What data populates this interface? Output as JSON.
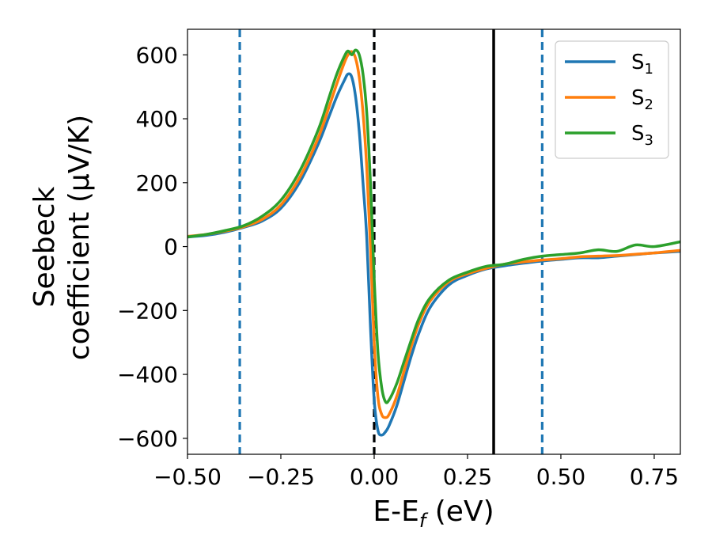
{
  "chart_data": {
    "type": "line",
    "xlabel": "E-E",
    "xlabel_sub": "f",
    "xlabel_unit": " (eV)",
    "ylabel_line1": "Seebeck",
    "ylabel_line2": "coefficient  (μV/K)",
    "xlim": [
      -0.5,
      0.82
    ],
    "ylim": [
      -650,
      680
    ],
    "xticks": [
      -0.5,
      -0.25,
      0.0,
      0.25,
      0.5,
      0.75
    ],
    "xtick_labels": [
      "−0.50",
      "−0.25",
      "0.00",
      "0.25",
      "0.50",
      "0.75"
    ],
    "yticks": [
      -600,
      -400,
      -200,
      0,
      200,
      400,
      600
    ],
    "ytick_labels": [
      "−600",
      "−400",
      "−200",
      "0",
      "200",
      "400",
      "600"
    ],
    "grid": false,
    "legend_position": "top-right",
    "vlines": [
      {
        "x": -0.36,
        "style": "dashed",
        "color": "#1f77b4"
      },
      {
        "x": 0.0,
        "style": "dashed",
        "color": "#1f77b4"
      },
      {
        "x": 0.0,
        "style": "dashed",
        "color": "#000000"
      },
      {
        "x": 0.32,
        "style": "solid",
        "color": "#000000"
      },
      {
        "x": 0.45,
        "style": "dashed",
        "color": "#1f77b4"
      }
    ],
    "series": [
      {
        "name": "S",
        "sub": "1",
        "color": "#1f77b4",
        "x": [
          -0.5,
          -0.45,
          -0.4,
          -0.35,
          -0.3,
          -0.25,
          -0.2,
          -0.15,
          -0.12,
          -0.1,
          -0.08,
          -0.07,
          -0.06,
          -0.05,
          -0.04,
          -0.03,
          -0.02,
          -0.01,
          0.0,
          0.01,
          0.02,
          0.03,
          0.04,
          0.06,
          0.08,
          0.1,
          0.12,
          0.15,
          0.2,
          0.25,
          0.3,
          0.35,
          0.4,
          0.45,
          0.5,
          0.55,
          0.6,
          0.65,
          0.7,
          0.75,
          0.82
        ],
        "y": [
          30,
          35,
          45,
          60,
          80,
          120,
          200,
          320,
          410,
          470,
          520,
          540,
          530,
          470,
          360,
          200,
          30,
          -250,
          -480,
          -575,
          -590,
          -580,
          -560,
          -500,
          -420,
          -340,
          -270,
          -190,
          -120,
          -90,
          -70,
          -60,
          -52,
          -45,
          -40,
          -35,
          -35,
          -30,
          -25,
          -20,
          -15
        ]
      },
      {
        "name": "S",
        "sub": "2",
        "color": "#ff7f0e",
        "x": [
          -0.5,
          -0.45,
          -0.4,
          -0.35,
          -0.3,
          -0.25,
          -0.2,
          -0.15,
          -0.12,
          -0.1,
          -0.08,
          -0.07,
          -0.06,
          -0.05,
          -0.04,
          -0.03,
          -0.02,
          -0.01,
          0.0,
          0.01,
          0.02,
          0.03,
          0.04,
          0.06,
          0.08,
          0.1,
          0.12,
          0.15,
          0.2,
          0.25,
          0.3,
          0.35,
          0.4,
          0.45,
          0.5,
          0.55,
          0.6,
          0.65,
          0.7,
          0.75,
          0.82
        ],
        "y": [
          32,
          38,
          48,
          62,
          85,
          130,
          215,
          340,
          440,
          510,
          575,
          600,
          610,
          590,
          530,
          420,
          250,
          0,
          -300,
          -470,
          -525,
          -535,
          -525,
          -470,
          -390,
          -310,
          -240,
          -170,
          -110,
          -85,
          -68,
          -55,
          -48,
          -42,
          -38,
          -32,
          -30,
          -28,
          -24,
          -20,
          -12
        ]
      },
      {
        "name": "S",
        "sub": "3",
        "color": "#2ca02c",
        "x": [
          -0.5,
          -0.45,
          -0.4,
          -0.35,
          -0.3,
          -0.25,
          -0.2,
          -0.15,
          -0.12,
          -0.1,
          -0.08,
          -0.07,
          -0.06,
          -0.05,
          -0.04,
          -0.03,
          -0.02,
          -0.01,
          0.0,
          0.01,
          0.02,
          0.03,
          0.04,
          0.06,
          0.08,
          0.1,
          0.12,
          0.15,
          0.2,
          0.25,
          0.3,
          0.35,
          0.4,
          0.45,
          0.5,
          0.55,
          0.6,
          0.65,
          0.7,
          0.75,
          0.82
        ],
        "y": [
          30,
          38,
          50,
          65,
          95,
          145,
          235,
          365,
          470,
          540,
          595,
          612,
          600,
          615,
          600,
          540,
          420,
          200,
          -100,
          -330,
          -440,
          -485,
          -480,
          -430,
          -360,
          -290,
          -225,
          -160,
          -105,
          -80,
          -62,
          -55,
          -40,
          -30,
          -25,
          -20,
          -10,
          -15,
          5,
          0,
          15
        ]
      }
    ]
  }
}
